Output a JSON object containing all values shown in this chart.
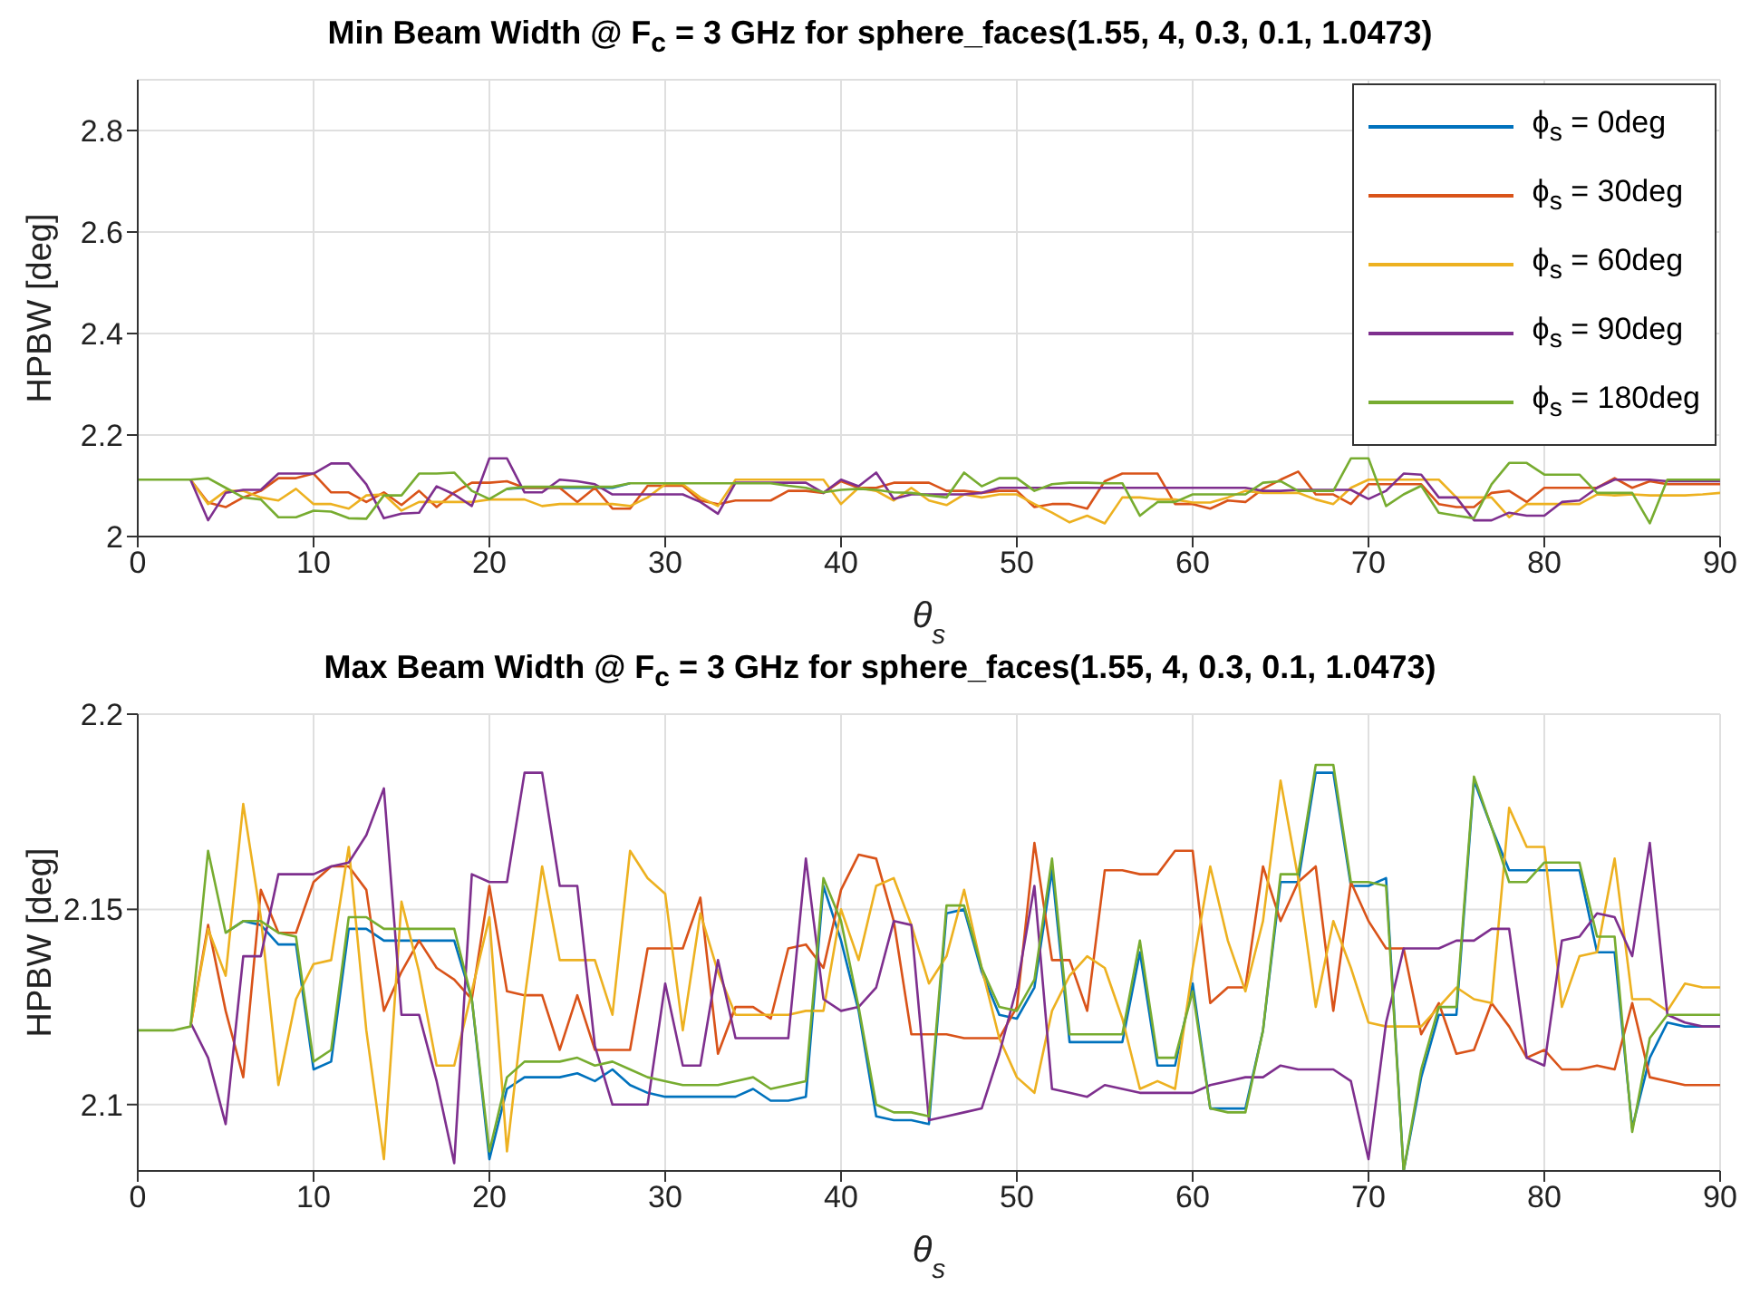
{
  "chart_data": [
    {
      "type": "line",
      "title": "Min Beam Width @ F$_{c}$ = 3 GHz for sphere_faces(1.55, 4, 0.3, 0.1, 1.0473)",
      "xlabel": "θ$_{s}$",
      "ylabel": "HPBW [deg]",
      "x": [
        0,
        1,
        2,
        3,
        4,
        5,
        6,
        7,
        8,
        9,
        10,
        11,
        12,
        13,
        14,
        15,
        16,
        17,
        18,
        19,
        20,
        21,
        22,
        23,
        24,
        25,
        26,
        27,
        28,
        29,
        30,
        31,
        32,
        33,
        34,
        35,
        36,
        37,
        38,
        39,
        40,
        41,
        42,
        43,
        44,
        45,
        46,
        47,
        48,
        49,
        50,
        51,
        52,
        53,
        54,
        55,
        56,
        57,
        58,
        59,
        60,
        61,
        62,
        63,
        64,
        65,
        66,
        67,
        68,
        69,
        70,
        71,
        72,
        73,
        74,
        75,
        76,
        77,
        78,
        79,
        80,
        81,
        82,
        83,
        84,
        85,
        86,
        87,
        88,
        89,
        90
      ],
      "series": [
        {
          "name": "ϕ$_{s}$ = 0deg",
          "color": "#0072bd",
          "values": [
            null,
            null,
            null,
            null,
            null,
            null,
            null,
            null,
            null,
            null,
            null,
            null,
            null,
            null,
            null,
            null,
            null,
            null,
            null,
            null,
            null,
            2.094,
            2.096,
            2.096,
            2.096,
            2.096,
            2.096,
            2.096,
            2.105,
            null,
            null,
            null,
            null,
            null,
            null,
            null,
            null,
            null,
            null,
            null,
            null,
            null,
            null,
            null,
            null,
            null,
            null,
            null,
            null,
            null,
            null,
            null,
            null,
            null,
            null,
            null,
            null,
            null,
            null,
            null,
            null,
            null,
            null,
            null,
            null,
            null,
            null,
            null,
            null,
            null,
            null,
            null,
            null,
            null,
            null,
            null,
            null,
            null,
            null,
            null,
            null,
            null,
            null,
            null,
            null,
            null,
            null,
            null,
            null,
            null,
            null
          ]
        },
        {
          "name": "ϕ$_{s}$ = 30deg",
          "color": "#d95319",
          "values": [
            null,
            null,
            null,
            2.112,
            2.067,
            2.058,
            2.077,
            2.09,
            2.115,
            2.115,
            2.124,
            2.087,
            2.087,
            2.068,
            2.087,
            2.062,
            2.09,
            2.058,
            2.087,
            2.106,
            2.106,
            2.109,
            2.096,
            2.096,
            2.096,
            2.068,
            2.096,
            2.055,
            2.055,
            2.1,
            2.1,
            2.1,
            2.071,
            2.064,
            2.071,
            2.071,
            2.071,
            2.09,
            2.09,
            2.086,
            2.109,
            2.096,
            2.096,
            2.106,
            2.106,
            2.106,
            2.09,
            2.09,
            2.086,
            2.09,
            2.09,
            2.058,
            2.064,
            2.064,
            2.055,
            2.109,
            2.124,
            2.124,
            2.124,
            2.064,
            2.064,
            2.055,
            2.071,
            2.068,
            2.094,
            2.112,
            2.128,
            2.083,
            2.083,
            2.064,
            2.103,
            2.103,
            2.103,
            2.103,
            2.064,
            2.058,
            2.058,
            2.086,
            2.09,
            2.068,
            2.096,
            2.096,
            2.096,
            2.096,
            2.115,
            2.096,
            2.109,
            2.103,
            2.103,
            2.103,
            2.103
          ]
        },
        {
          "name": "ϕ$_{s}$ = 60deg",
          "color": "#edb120",
          "values": [
            null,
            null,
            null,
            2.112,
            2.064,
            2.09,
            2.09,
            2.077,
            2.071,
            2.094,
            2.064,
            2.064,
            2.055,
            2.081,
            2.083,
            2.051,
            2.068,
            2.068,
            2.068,
            2.068,
            2.073,
            2.073,
            2.073,
            2.06,
            2.064,
            2.064,
            2.064,
            2.064,
            2.06,
            2.077,
            2.103,
            2.103,
            2.077,
            2.06,
            2.112,
            2.112,
            2.112,
            2.112,
            2.112,
            2.112,
            2.064,
            2.096,
            2.09,
            2.071,
            2.096,
            2.071,
            2.062,
            2.083,
            2.077,
            2.083,
            2.083,
            2.064,
            2.047,
            2.028,
            2.041,
            2.026,
            2.077,
            2.077,
            2.073,
            2.073,
            2.067,
            2.067,
            2.077,
            2.09,
            2.086,
            2.086,
            2.086,
            2.073,
            2.064,
            2.096,
            2.112,
            2.112,
            2.112,
            2.112,
            2.112,
            2.077,
            2.077,
            2.077,
            2.038,
            2.064,
            2.064,
            2.064,
            2.064,
            2.083,
            2.081,
            2.083,
            2.081,
            2.081,
            2.081,
            2.083,
            2.086
          ]
        },
        {
          "name": "ϕ$_{s}$ = 90deg",
          "color": "#7e2f8e",
          "values": [
            null,
            null,
            null,
            2.112,
            2.032,
            2.086,
            2.092,
            2.092,
            2.124,
            2.124,
            2.124,
            2.144,
            2.144,
            2.103,
            2.036,
            2.045,
            2.047,
            2.099,
            2.083,
            2.06,
            2.154,
            2.154,
            2.087,
            2.087,
            2.112,
            2.109,
            2.103,
            2.083,
            2.083,
            2.083,
            2.083,
            2.083,
            2.068,
            2.045,
            2.106,
            2.106,
            2.106,
            2.106,
            2.106,
            2.086,
            2.112,
            2.099,
            2.126,
            2.074,
            2.083,
            2.083,
            2.083,
            2.083,
            2.086,
            2.096,
            2.096,
            2.096,
            2.096,
            2.096,
            2.096,
            2.096,
            2.096,
            2.096,
            2.096,
            2.096,
            2.096,
            2.096,
            2.096,
            2.096,
            2.09,
            2.09,
            2.092,
            2.092,
            2.092,
            2.092,
            2.074,
            2.09,
            2.124,
            2.122,
            2.077,
            2.077,
            2.032,
            2.032,
            2.047,
            2.041,
            2.041,
            2.068,
            2.071,
            2.096,
            2.112,
            2.112,
            2.112,
            2.109,
            2.109,
            2.109,
            2.109
          ]
        },
        {
          "name": "ϕ$_{s}$ = 180deg",
          "color": "#77ac30",
          "values": [
            2.112,
            2.112,
            2.112,
            2.112,
            2.115,
            2.096,
            2.077,
            2.073,
            2.038,
            2.038,
            2.051,
            2.049,
            2.036,
            2.035,
            2.081,
            2.081,
            2.124,
            2.124,
            2.126,
            2.09,
            2.074,
            2.094,
            2.098,
            2.098,
            2.098,
            2.098,
            2.098,
            2.098,
            2.105,
            2.105,
            2.105,
            2.105,
            2.105,
            2.105,
            2.105,
            2.105,
            2.105,
            2.1,
            2.096,
            2.087,
            2.092,
            2.094,
            2.092,
            2.087,
            2.086,
            2.081,
            2.077,
            2.126,
            2.099,
            2.115,
            2.115,
            2.09,
            2.103,
            2.106,
            2.106,
            2.105,
            2.105,
            2.041,
            2.068,
            2.068,
            2.083,
            2.083,
            2.083,
            2.083,
            2.106,
            2.109,
            2.09,
            2.09,
            2.09,
            2.154,
            2.154,
            2.06,
            2.083,
            2.1,
            2.047,
            2.041,
            2.036,
            2.103,
            2.145,
            2.145,
            2.122,
            2.122,
            2.122,
            2.086,
            2.086,
            2.086,
            2.026,
            2.112,
            2.112,
            2.112,
            2.112
          ]
        }
      ],
      "xlim": [
        0,
        90
      ],
      "xticks": [
        0,
        10,
        20,
        30,
        40,
        50,
        60,
        70,
        80,
        90
      ],
      "ylim": [
        2,
        2.9
      ],
      "yticks": [
        2,
        2.2,
        2.4,
        2.6,
        2.8
      ],
      "grid": true,
      "legend": "top right"
    },
    {
      "type": "line",
      "title": "Max Beam Width @ F$_{c}$ = 3 GHz for sphere_faces(1.55, 4, 0.3, 0.1, 1.0473)",
      "xlabel": "θ$_{s}$",
      "ylabel": "HPBW [deg]",
      "x": [
        0,
        1,
        2,
        3,
        4,
        5,
        6,
        7,
        8,
        9,
        10,
        11,
        12,
        13,
        14,
        15,
        16,
        17,
        18,
        19,
        20,
        21,
        22,
        23,
        24,
        25,
        26,
        27,
        28,
        29,
        30,
        31,
        32,
        33,
        34,
        35,
        36,
        37,
        38,
        39,
        40,
        41,
        42,
        43,
        44,
        45,
        46,
        47,
        48,
        49,
        50,
        51,
        52,
        53,
        54,
        55,
        56,
        57,
        58,
        59,
        60,
        61,
        62,
        63,
        64,
        65,
        66,
        67,
        68,
        69,
        70,
        71,
        72,
        73,
        74,
        75,
        76,
        77,
        78,
        79,
        80,
        81,
        82,
        83,
        84,
        85,
        86,
        87,
        88,
        89,
        90
      ],
      "series": [
        {
          "color": "#0072bd",
          "values": [
            null,
            null,
            null,
            null,
            null,
            2.144,
            2.147,
            2.146,
            2.141,
            2.141,
            2.109,
            2.111,
            2.145,
            2.145,
            2.142,
            2.142,
            2.142,
            2.142,
            2.142,
            2.127,
            2.086,
            2.104,
            2.107,
            2.107,
            2.107,
            2.108,
            2.106,
            2.109,
            2.105,
            2.103,
            2.102,
            2.102,
            2.102,
            2.102,
            2.102,
            2.104,
            2.101,
            2.101,
            2.102,
            2.156,
            2.142,
            2.124,
            2.097,
            2.096,
            2.096,
            2.095,
            2.149,
            2.15,
            2.134,
            2.123,
            2.122,
            2.13,
            2.16,
            2.116,
            2.116,
            2.116,
            2.116,
            2.139,
            2.11,
            2.11,
            2.131,
            2.099,
            2.099,
            2.099,
            2.119,
            2.157,
            2.157,
            2.185,
            2.185,
            2.156,
            2.156,
            2.158,
            2.083,
            2.107,
            2.123,
            2.123,
            2.183,
            2.171,
            2.16,
            2.16,
            2.16,
            2.16,
            2.16,
            2.139,
            2.139,
            2.094,
            2.112,
            2.121,
            2.12,
            2.12,
            2.12
          ]
        },
        {
          "color": "#d95319",
          "values": [
            null,
            null,
            null,
            2.12,
            2.146,
            2.124,
            2.107,
            2.155,
            2.144,
            2.144,
            2.157,
            2.161,
            2.161,
            2.155,
            2.124,
            2.134,
            2.142,
            2.135,
            2.132,
            2.127,
            2.156,
            2.129,
            2.128,
            2.128,
            2.114,
            2.128,
            2.114,
            2.114,
            2.114,
            2.14,
            2.14,
            2.14,
            2.153,
            2.113,
            2.125,
            2.125,
            2.122,
            2.14,
            2.141,
            2.135,
            2.155,
            2.164,
            2.163,
            2.147,
            2.118,
            2.118,
            2.118,
            2.117,
            2.117,
            2.117,
            2.125,
            2.167,
            2.137,
            2.137,
            2.124,
            2.16,
            2.16,
            2.159,
            2.159,
            2.165,
            2.165,
            2.126,
            2.13,
            2.13,
            2.161,
            2.147,
            2.157,
            2.161,
            2.124,
            2.157,
            2.147,
            2.14,
            2.14,
            2.118,
            2.126,
            2.113,
            2.114,
            2.126,
            2.12,
            2.112,
            2.114,
            2.109,
            2.109,
            2.11,
            2.109,
            2.126,
            2.107,
            2.106,
            2.105,
            2.105,
            2.105
          ]
        },
        {
          "color": "#edb120",
          "values": [
            null,
            null,
            null,
            2.12,
            2.145,
            2.133,
            2.177,
            2.148,
            2.105,
            2.127,
            2.136,
            2.137,
            2.166,
            2.119,
            2.086,
            2.152,
            2.134,
            2.11,
            2.11,
            2.129,
            2.148,
            2.088,
            2.127,
            2.161,
            2.137,
            2.137,
            2.137,
            2.123,
            2.165,
            2.158,
            2.154,
            2.119,
            2.149,
            2.134,
            2.123,
            2.123,
            2.123,
            2.123,
            2.124,
            2.124,
            2.15,
            2.137,
            2.156,
            2.158,
            2.146,
            2.131,
            2.138,
            2.155,
            2.135,
            2.117,
            2.107,
            2.103,
            2.124,
            2.133,
            2.138,
            2.135,
            2.122,
            2.104,
            2.106,
            2.104,
            2.135,
            2.161,
            2.142,
            2.129,
            2.147,
            2.183,
            2.158,
            2.125,
            2.147,
            2.135,
            2.121,
            2.12,
            2.12,
            2.12,
            2.125,
            2.13,
            2.127,
            2.126,
            2.176,
            2.166,
            2.166,
            2.125,
            2.138,
            2.139,
            2.163,
            2.127,
            2.127,
            2.124,
            2.131,
            2.13,
            2.13
          ]
        },
        {
          "color": "#7e2f8e",
          "values": [
            null,
            null,
            null,
            2.121,
            2.112,
            2.095,
            2.138,
            2.138,
            2.159,
            2.159,
            2.159,
            2.161,
            2.162,
            2.169,
            2.181,
            2.123,
            2.123,
            2.106,
            2.085,
            2.159,
            2.157,
            2.157,
            2.185,
            2.185,
            2.156,
            2.156,
            2.115,
            2.1,
            2.1,
            2.1,
            2.131,
            2.11,
            2.11,
            2.137,
            2.117,
            2.117,
            2.117,
            2.117,
            2.163,
            2.127,
            2.124,
            2.125,
            2.13,
            2.147,
            2.146,
            2.096,
            2.097,
            2.098,
            2.099,
            2.113,
            2.13,
            2.156,
            2.104,
            2.103,
            2.102,
            2.105,
            2.104,
            2.103,
            2.103,
            2.103,
            2.103,
            2.105,
            2.106,
            2.107,
            2.107,
            2.11,
            2.109,
            2.109,
            2.109,
            2.106,
            2.086,
            2.121,
            2.14,
            2.14,
            2.14,
            2.142,
            2.142,
            2.145,
            2.145,
            2.112,
            2.11,
            2.142,
            2.143,
            2.149,
            2.148,
            2.138,
            2.167,
            2.123,
            2.121,
            2.12,
            2.12
          ]
        },
        {
          "color": "#77ac30",
          "values": [
            2.119,
            2.119,
            2.119,
            2.12,
            2.165,
            2.144,
            2.147,
            2.147,
            2.144,
            2.143,
            2.111,
            2.114,
            2.148,
            2.148,
            2.145,
            2.145,
            2.145,
            2.145,
            2.145,
            2.127,
            2.088,
            2.107,
            2.111,
            2.111,
            2.111,
            2.112,
            2.11,
            2.111,
            2.109,
            2.107,
            2.106,
            2.105,
            2.105,
            2.105,
            2.106,
            2.107,
            2.104,
            2.105,
            2.106,
            2.158,
            2.147,
            2.125,
            2.1,
            2.098,
            2.098,
            2.097,
            2.151,
            2.151,
            2.135,
            2.125,
            2.124,
            2.132,
            2.163,
            2.118,
            2.118,
            2.118,
            2.118,
            2.142,
            2.112,
            2.112,
            2.129,
            2.099,
            2.098,
            2.098,
            2.119,
            2.159,
            2.159,
            2.187,
            2.187,
            2.157,
            2.157,
            2.156,
            2.083,
            2.109,
            2.125,
            2.125,
            2.184,
            2.171,
            2.157,
            2.157,
            2.162,
            2.162,
            2.162,
            2.143,
            2.143,
            2.093,
            2.117,
            2.123,
            2.123,
            2.123,
            2.123
          ]
        }
      ],
      "xlim": [
        0,
        90
      ],
      "xticks": [
        0,
        10,
        20,
        30,
        40,
        50,
        60,
        70,
        80,
        90
      ],
      "ylim": [
        2.083,
        2.2
      ],
      "yticks": [
        2.1,
        2.15,
        2.2
      ],
      "grid": true
    }
  ]
}
